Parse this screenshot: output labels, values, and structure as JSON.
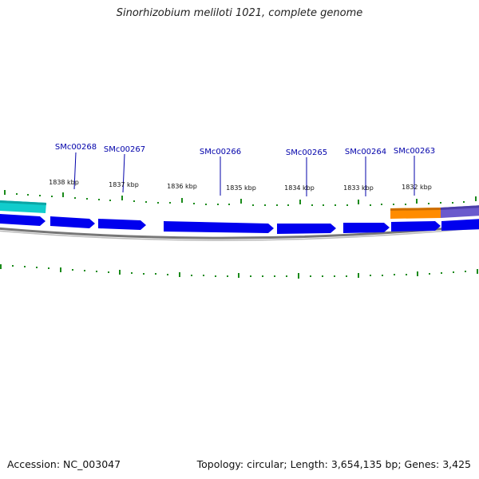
{
  "title": "Sinorhizobium meliloti 1021, complete genome",
  "footer": {
    "accession": "Accession: NC_003047",
    "stats": "Topology: circular; Length: 3,654,135 bp; Genes: 3,425"
  },
  "tick_labels": [
    "1838 kbp",
    "1837 kbp",
    "1836 kbp",
    "1835 kbp",
    "1834 kbp",
    "1833 kbp",
    "1832 kbp"
  ],
  "genes": [
    "SMc00268",
    "SMc00267",
    "SMc00266",
    "SMc00265",
    "SMc00264",
    "SMc00263"
  ],
  "colors": {
    "cds": "#0000ee",
    "cds_highlight": "#4d6bff",
    "other_feature": "#11cccc",
    "orange_feature": "#ff8c00",
    "purple_feature": "#6a5acd",
    "backbone": "#777777",
    "ticks": "#1a8a1a",
    "label": "#0000aa"
  }
}
